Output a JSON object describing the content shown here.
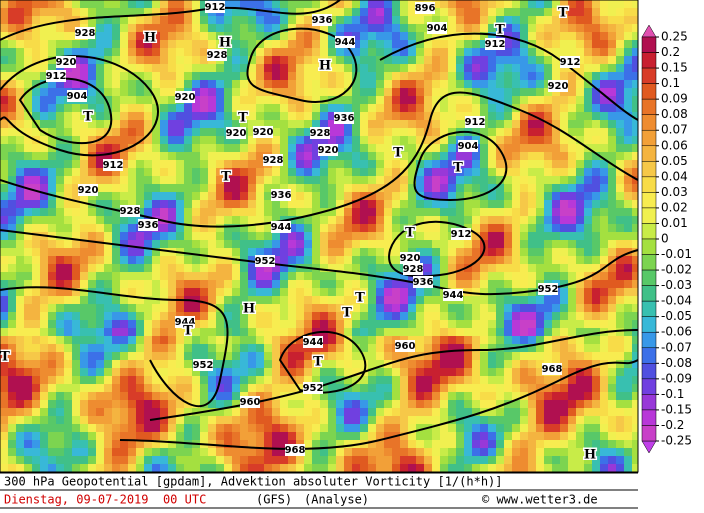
{
  "colorbar": {
    "levels": [
      0.25,
      0.2,
      0.15,
      0.1,
      0.09,
      0.08,
      0.07,
      0.06,
      0.05,
      0.04,
      0.03,
      0.02,
      0.01,
      0,
      -0.01,
      -0.02,
      -0.03,
      -0.04,
      -0.05,
      -0.06,
      -0.07,
      -0.08,
      -0.09,
      -0.1,
      -0.15,
      -0.2,
      -0.25
    ],
    "colors": [
      "#b01050",
      "#c82030",
      "#d83c28",
      "#e05a20",
      "#e87428",
      "#ee8c30",
      "#f2a038",
      "#f4b440",
      "#f6c848",
      "#f8dc48",
      "#f8ec50",
      "#f0f050",
      "#c8ec48",
      "#a4e040",
      "#7cd450",
      "#58c868",
      "#40c088",
      "#38c0b0",
      "#38b8d8",
      "#3898e8",
      "#3c70e8",
      "#5050e0",
      "#7040e0",
      "#9838d8",
      "#b838d8",
      "#c840c8"
    ],
    "arrow_top": "#e050b0",
    "arrow_bottom": "#c040e8"
  },
  "map": {
    "contour_labels": [
      "912",
      "936",
      "944",
      "896",
      "904",
      "912",
      "912",
      "920",
      "928",
      "920",
      "912",
      "904",
      "928",
      "920",
      "920",
      "920",
      "928",
      "936",
      "920",
      "928",
      "912",
      "920",
      "928",
      "936",
      "944",
      "936",
      "952",
      "904",
      "912",
      "912",
      "920",
      "928",
      "936",
      "944",
      "952",
      "960",
      "968",
      "944",
      "952",
      "944",
      "952",
      "960",
      "968"
    ],
    "centers": [
      "H",
      "H",
      "H",
      "T",
      "T",
      "T",
      "T",
      "T",
      "T",
      "T",
      "T",
      "H",
      "T",
      "T",
      "T",
      "T",
      "T",
      "H"
    ]
  },
  "footer": {
    "line1": "300 hPa Geopotential [gpdam], Advektion absoluter Vorticity [1/(h*h)]",
    "date": "Dienstag, 09-07-2019  00 UTC",
    "model": "(GFS)",
    "run": "(Analyse)",
    "source": "© www.wetter3.de"
  }
}
